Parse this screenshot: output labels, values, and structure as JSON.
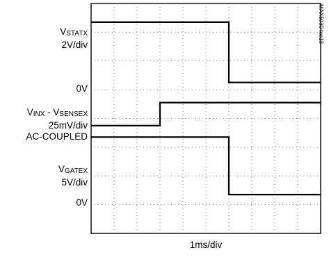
{
  "chart_data": {
    "type": "line",
    "title": "",
    "xlabel": "1ms/div",
    "ylabel": "",
    "figure_tag": "MAX5930 toc13",
    "grid": true,
    "divisions": {
      "x": 10,
      "y": 8
    },
    "x_range_div": [
      0,
      10
    ],
    "y_range_div": [
      0,
      8
    ],
    "channel_labels": [
      {
        "main": "V",
        "sub": "STATX",
        "line2": "2V/div"
      },
      {
        "main": "0V"
      },
      {
        "main": "V",
        "sub": "INX",
        "mid": " - V",
        "sub2": "SENSEX",
        "line2": "25mV/div",
        "line3": "AC-COUPLED"
      },
      {
        "main": "V",
        "sub": "GATEX",
        "line2": "5V/div"
      },
      {
        "main": "0V"
      }
    ],
    "series": [
      {
        "name": "V STATX",
        "x_div": [
          0,
          6.0,
          6.0,
          10
        ],
        "y_div": [
          7.35,
          7.35,
          5.25,
          5.25
        ]
      },
      {
        "name": "V INX - V SENSEX",
        "x_div": [
          0,
          3.0,
          3.0,
          10
        ],
        "y_div": [
          3.75,
          3.75,
          4.55,
          4.55
        ]
      },
      {
        "name": "V GATEX",
        "x_div": [
          0,
          6.0,
          6.0,
          10
        ],
        "y_div": [
          3.35,
          3.35,
          1.35,
          1.35
        ]
      }
    ],
    "trace_color": "#000000",
    "grid_color": "#555555"
  }
}
